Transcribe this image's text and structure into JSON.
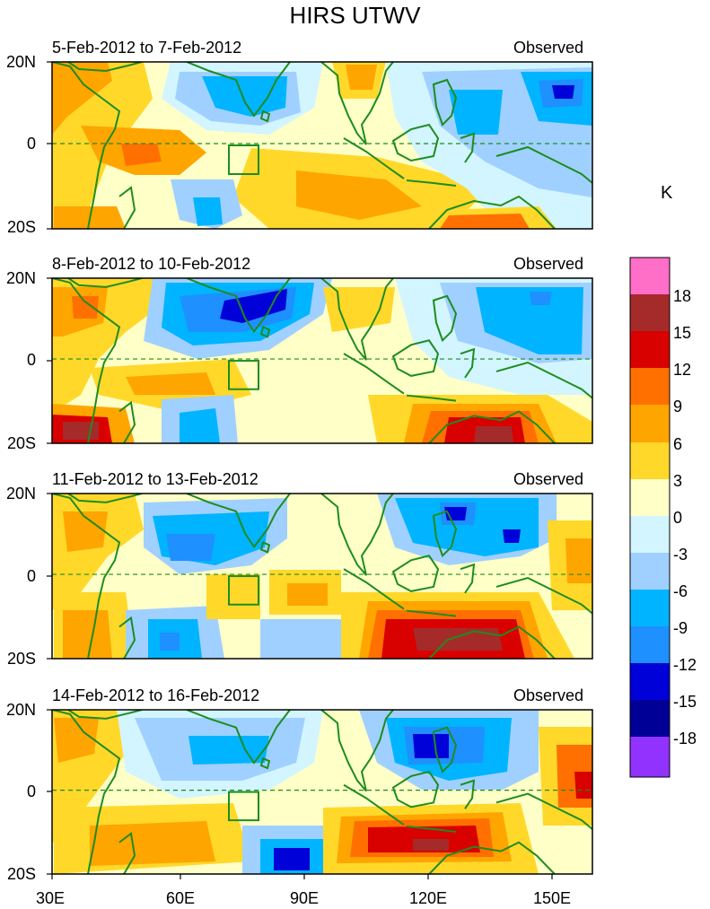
{
  "title": "HIRS UTWV",
  "colorbar_unit": "K",
  "y_axis_labels": [
    "20N",
    "0",
    "20S"
  ],
  "x_axis_labels": [
    "30E",
    "60E",
    "90E",
    "120E",
    "150E"
  ],
  "panels": [
    {
      "date_range": "5-Feb-2012 to 7-Feb-2012",
      "tag": "Observed"
    },
    {
      "date_range": "8-Feb-2012 to 10-Feb-2012",
      "tag": "Observed"
    },
    {
      "date_range": "11-Feb-2012 to 13-Feb-2012",
      "tag": "Observed"
    },
    {
      "date_range": "14-Feb-2012 to 16-Feb-2012",
      "tag": "Observed"
    }
  ],
  "colorbar": {
    "labels": [
      "18",
      "15",
      "12",
      "9",
      "6",
      "3",
      "0",
      "-3",
      "-6",
      "-9",
      "-12",
      "-15",
      "-18"
    ],
    "colors": [
      "#ff6ec7",
      "#a52a2a",
      "#d90000",
      "#ff7000",
      "#ffa500",
      "#ffd82a",
      "#ffffc8",
      "#d2f5ff",
      "#a0d0ff",
      "#00b4ff",
      "#1e90ff",
      "#0000d8",
      "#000096",
      "#9132ff"
    ]
  },
  "colors": {
    "land_outline": "#1e8c1e",
    "box_outline": "#1e8c1e",
    "equator_line": "#1e8c1e"
  }
}
